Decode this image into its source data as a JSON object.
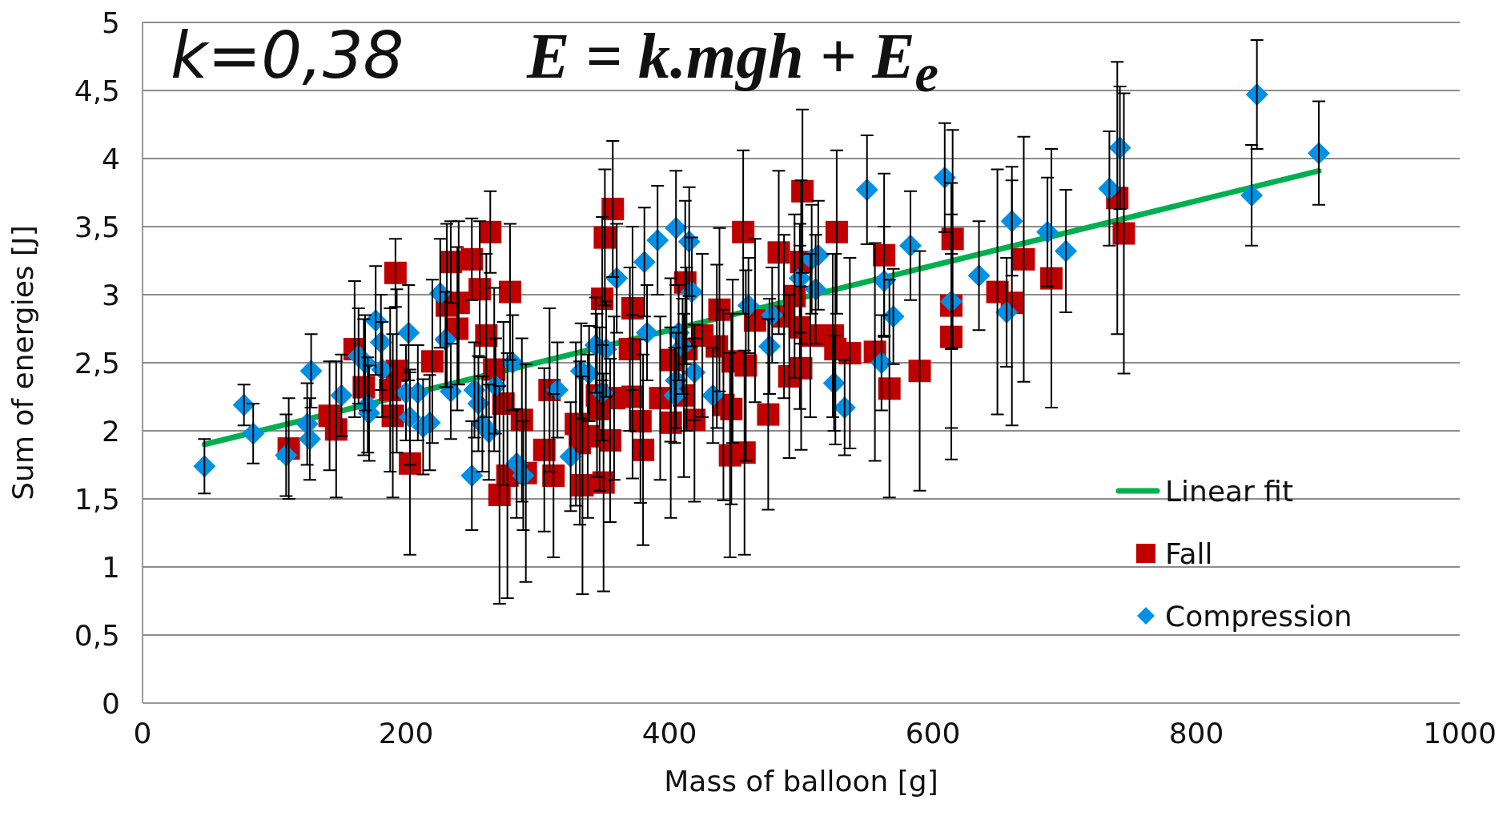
{
  "chart_data": {
    "type": "scatter",
    "xlabel": "Mass of balloon [g]",
    "ylabel": "Sum of energies [J]",
    "annotations": [
      "k=0,38",
      "E = k.mgh + E$_{e}$"
    ],
    "xlim": [
      0,
      1000
    ],
    "xticks": [
      0,
      200,
      400,
      600,
      800,
      1000
    ],
    "ylim": [
      0,
      5
    ],
    "yticks": [
      0,
      {
        "value": 0.5,
        "label": "0,5"
      },
      1,
      {
        "value": 1.5,
        "label": "1,5"
      },
      2,
      {
        "value": 2.5,
        "label": "2,5"
      },
      3,
      {
        "value": 3.5,
        "label": "3,5"
      },
      4,
      {
        "value": 4.5,
        "label": "4,5"
      },
      5
    ],
    "grid": "y",
    "legend": "bottom right",
    "series": [
      {
        "name": "Linear fit",
        "type": "line",
        "color": "#00b050",
        "marker": "none",
        "x": [
          47,
          893
        ],
        "values": [
          1.9,
          3.91
        ]
      },
      {
        "name": "Fall",
        "color": "#c00000",
        "marker": "square",
        "x": [
          111,
          142,
          147,
          161,
          168,
          190,
          192,
          193,
          188,
          203,
          220,
          231,
          234,
          240,
          239,
          250,
          256,
          261,
          264,
          267,
          271,
          274,
          277,
          279,
          288,
          291,
          305,
          309,
          312,
          329,
          332,
          334,
          338,
          345,
          347,
          349,
          350,
          351,
          355,
          357,
          358,
          370,
          372,
          372,
          378,
          380,
          393,
          401,
          401,
          411,
          412,
          413,
          419,
          425,
          436,
          438,
          441,
          447,
          448,
          446,
          457,
          456,
          458,
          465,
          475,
          483,
          487,
          491,
          495,
          499,
          500,
          501,
          500,
          507,
          524,
          527,
          526,
          537,
          556,
          563,
          567,
          590,
          614,
          615,
          614,
          649,
          660,
          669,
          690,
          740,
          745
        ],
        "values": [
          1.87,
          2.11,
          2.01,
          2.6,
          2.32,
          2.11,
          3.16,
          2.44,
          2.3,
          1.76,
          2.51,
          2.92,
          3.24,
          2.94,
          2.75,
          3.26,
          3.04,
          2.7,
          3.46,
          2.45,
          1.53,
          2.2,
          1.67,
          3.02,
          2.08,
          1.69,
          1.86,
          2.3,
          1.67,
          2.05,
          1.91,
          1.6,
          1.96,
          2.26,
          2.16,
          2.97,
          1.62,
          3.42,
          1.93,
          3.63,
          2.24,
          2.6,
          2.9,
          2.25,
          2.07,
          1.86,
          2.24,
          2.52,
          2.06,
          2.26,
          3.09,
          2.6,
          2.08,
          2.7,
          2.62,
          2.89,
          2.19,
          2.16,
          2.51,
          1.82,
          1.84,
          3.46,
          2.48,
          2.81,
          2.12,
          3.31,
          2.84,
          2.4,
          2.99,
          2.76,
          3.24,
          3.76,
          2.46,
          2.7,
          2.7,
          3.46,
          2.6,
          2.57,
          2.58,
          3.29,
          2.31,
          2.44,
          2.92,
          3.41,
          2.69,
          3.02,
          2.94,
          3.26,
          3.12,
          3.71,
          3.45
        ],
        "errors": [
          0.37,
          0.4,
          0.5,
          0.5,
          0.5,
          0.6,
          0.25,
          0.6,
          0.6,
          0.67,
          0.6,
          0.6,
          0.3,
          0.6,
          0.6,
          0.3,
          0.5,
          0.6,
          0.3,
          0.6,
          0.8,
          0.6,
          0.9,
          0.5,
          0.6,
          0.8,
          0.6,
          0.6,
          0.6,
          0.6,
          0.6,
          0.8,
          0.6,
          0.6,
          0.6,
          0.6,
          0.8,
          0.5,
          0.6,
          0.5,
          0.6,
          0.6,
          0.6,
          0.6,
          0.6,
          0.7,
          0.6,
          0.6,
          0.7,
          0.6,
          0.6,
          0.6,
          0.6,
          0.6,
          0.6,
          0.6,
          0.7,
          0.7,
          0.6,
          0.75,
          0.75,
          0.6,
          0.7,
          0.6,
          0.7,
          0.6,
          0.6,
          0.6,
          0.6,
          0.6,
          0.6,
          0.6,
          0.6,
          0.6,
          0.6,
          0.6,
          0.7,
          0.7,
          0.8,
          0.6,
          0.8,
          0.88,
          0.9,
          0.8,
          0.9,
          0.9,
          0.9,
          0.9,
          0.95,
          1.0,
          1.03
        ]
      },
      {
        "name": "Compression",
        "color": "#0091e6",
        "marker": "diamond",
        "x": [
          47,
          77,
          84,
          109,
          125,
          127,
          128,
          151,
          164,
          169,
          171,
          172,
          177,
          181,
          182,
          200,
          202,
          203,
          209,
          213,
          218,
          226,
          230,
          234,
          250,
          252,
          255,
          258,
          263,
          268,
          281,
          284,
          289,
          315,
          325,
          333,
          339,
          344,
          349,
          352,
          360,
          381,
          383,
          391,
          405,
          407,
          405,
          404,
          410,
          415,
          417,
          419,
          433,
          460,
          476,
          478,
          499,
          508,
          513,
          511,
          525,
          533,
          550,
          561,
          563,
          570,
          583,
          609,
          614,
          635,
          656,
          660,
          687,
          701,
          734,
          742,
          842,
          846,
          893
        ],
        "values": [
          1.74,
          2.19,
          1.98,
          1.82,
          2.05,
          1.94,
          2.44,
          2.26,
          2.55,
          2.5,
          2.19,
          2.13,
          2.81,
          2.65,
          2.45,
          2.28,
          2.72,
          2.1,
          2.28,
          2.03,
          2.06,
          3.01,
          2.67,
          2.29,
          1.67,
          2.3,
          2.2,
          2.05,
          1.99,
          2.33,
          2.5,
          1.76,
          1.67,
          2.3,
          1.81,
          2.44,
          2.42,
          2.63,
          2.28,
          2.6,
          3.12,
          3.24,
          2.72,
          3.4,
          3.49,
          2.72,
          2.37,
          2.26,
          2.62,
          3.39,
          3.02,
          2.43,
          2.26,
          2.92,
          2.62,
          2.85,
          3.12,
          3.26,
          3.29,
          3.04,
          2.35,
          2.17,
          3.77,
          2.5,
          3.1,
          2.84,
          3.36,
          3.86,
          2.95,
          3.14,
          2.87,
          3.54,
          3.46,
          3.32,
          3.78,
          4.08,
          3.73,
          4.47,
          4.04
        ],
        "errors": [
          0.2,
          0.15,
          0.22,
          0.3,
          0.3,
          0.3,
          0.27,
          0.3,
          0.35,
          0.35,
          0.35,
          0.35,
          0.4,
          0.35,
          0.35,
          0.35,
          0.35,
          0.35,
          0.35,
          0.35,
          0.35,
          0.4,
          0.35,
          0.35,
          0.4,
          0.35,
          0.35,
          0.35,
          0.35,
          0.35,
          0.35,
          0.4,
          0.4,
          0.35,
          0.4,
          0.35,
          0.35,
          0.35,
          0.35,
          0.35,
          0.4,
          0.4,
          0.35,
          0.4,
          0.42,
          0.35,
          0.35,
          0.35,
          0.35,
          0.4,
          0.4,
          0.35,
          0.35,
          0.35,
          0.35,
          0.35,
          0.4,
          0.4,
          0.4,
          0.4,
          0.35,
          0.35,
          0.4,
          0.35,
          0.4,
          0.35,
          0.4,
          0.4,
          0.35,
          0.4,
          0.4,
          0.4,
          0.4,
          0.45,
          0.42,
          0.45,
          0.37,
          0.4,
          0.38
        ]
      }
    ]
  }
}
